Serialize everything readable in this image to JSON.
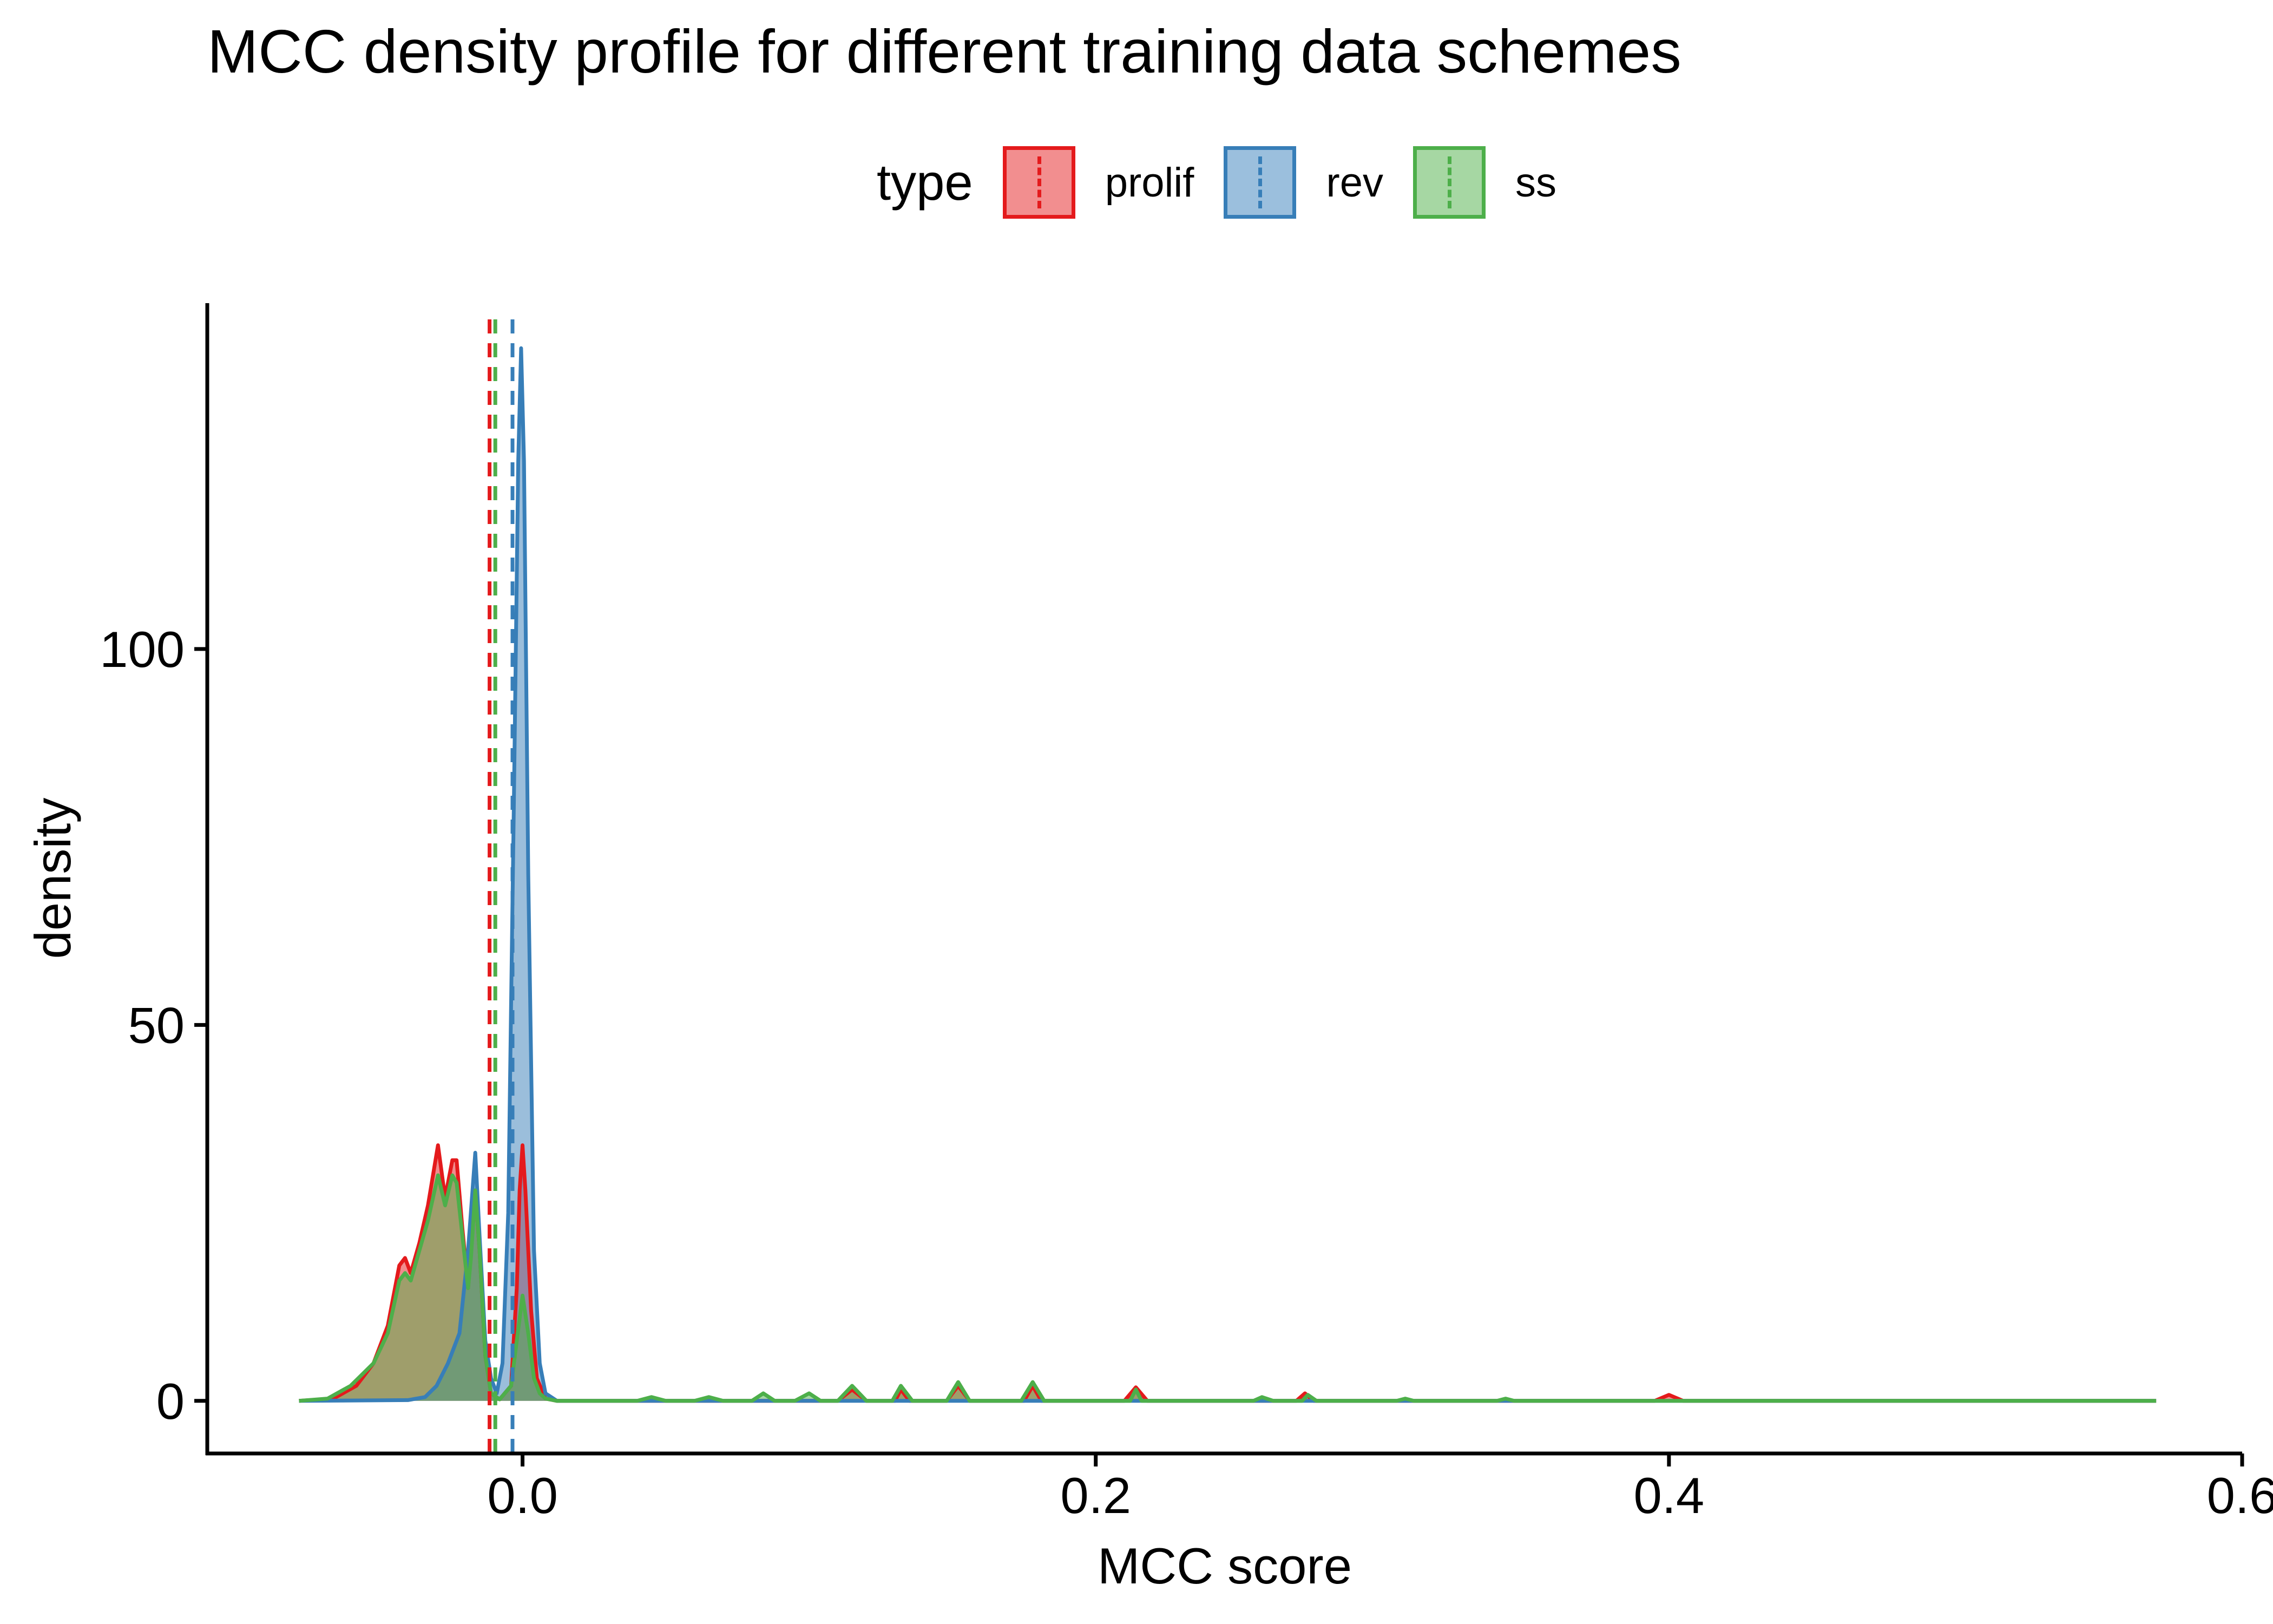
{
  "chart_data": {
    "type": "area",
    "title": "MCC density profile for different training data schemes",
    "xlabel": "MCC score",
    "ylabel": "density",
    "xlim": [
      -0.11,
      0.6
    ],
    "ylim": [
      -7,
      146
    ],
    "x_ticks": [
      "0.0",
      "0.2",
      "0.4",
      "0.6"
    ],
    "x_tick_values": [
      0.0,
      0.2,
      0.4,
      0.6
    ],
    "y_ticks": [
      "0",
      "50",
      "100"
    ],
    "y_tick_values": [
      0,
      50,
      100
    ],
    "grid": false,
    "legend": {
      "title": "type",
      "placement": "top"
    },
    "series": [
      {
        "name": "prolif",
        "color": "#E41A1C",
        "fill_color": "#F08A8C",
        "mean_line": -0.0115,
        "points": [
          [
            -0.078,
            0
          ],
          [
            -0.066,
            0.3
          ],
          [
            -0.058,
            2
          ],
          [
            -0.052,
            5
          ],
          [
            -0.047,
            10
          ],
          [
            -0.043,
            18
          ],
          [
            -0.041,
            19
          ],
          [
            -0.039,
            17
          ],
          [
            -0.036,
            21
          ],
          [
            -0.033,
            26
          ],
          [
            -0.0295,
            34
          ],
          [
            -0.027,
            27
          ],
          [
            -0.0245,
            32
          ],
          [
            -0.023,
            32
          ],
          [
            -0.021,
            23
          ],
          [
            -0.019,
            15
          ],
          [
            -0.018,
            20
          ],
          [
            -0.0165,
            28
          ],
          [
            -0.015,
            20
          ],
          [
            -0.013,
            6
          ],
          [
            -0.011,
            1
          ],
          [
            -0.008,
            0.2
          ],
          [
            -0.004,
            2
          ],
          [
            -0.002,
            15
          ],
          [
            -0.001,
            28
          ],
          [
            0.0,
            34
          ],
          [
            0.001,
            28
          ],
          [
            0.003,
            12
          ],
          [
            0.005,
            3
          ],
          [
            0.008,
            0.3
          ],
          [
            0.012,
            0
          ],
          [
            0.11,
            0
          ],
          [
            0.115,
            1.5
          ],
          [
            0.12,
            0
          ],
          [
            0.13,
            0
          ],
          [
            0.132,
            1.5
          ],
          [
            0.135,
            0
          ],
          [
            0.148,
            0
          ],
          [
            0.152,
            2
          ],
          [
            0.156,
            0
          ],
          [
            0.175,
            0
          ],
          [
            0.178,
            2
          ],
          [
            0.181,
            0
          ],
          [
            0.21,
            0
          ],
          [
            0.214,
            1.8
          ],
          [
            0.218,
            0
          ],
          [
            0.27,
            0
          ],
          [
            0.273,
            1
          ],
          [
            0.276,
            0
          ],
          [
            0.395,
            0
          ],
          [
            0.4,
            0.8
          ],
          [
            0.405,
            0
          ],
          [
            0.57,
            0
          ]
        ]
      },
      {
        "name": "rev",
        "color": "#377EB8",
        "fill_color": "#9BBFDD",
        "mean_line": -0.0035,
        "points": [
          [
            -0.078,
            0
          ],
          [
            -0.04,
            0.1
          ],
          [
            -0.034,
            0.5
          ],
          [
            -0.03,
            2
          ],
          [
            -0.026,
            5
          ],
          [
            -0.022,
            9
          ],
          [
            -0.019,
            20
          ],
          [
            -0.0165,
            33
          ],
          [
            -0.015,
            22
          ],
          [
            -0.013,
            8
          ],
          [
            -0.011,
            3
          ],
          [
            -0.009,
            1
          ],
          [
            -0.007,
            5
          ],
          [
            -0.005,
            25
          ],
          [
            -0.003,
            80
          ],
          [
            -0.0015,
            125
          ],
          [
            -0.0005,
            140
          ],
          [
            0.0005,
            125
          ],
          [
            0.002,
            70
          ],
          [
            0.004,
            20
          ],
          [
            0.006,
            5
          ],
          [
            0.008,
            1
          ],
          [
            0.012,
            0
          ],
          [
            0.57,
            0
          ]
        ]
      },
      {
        "name": "ss",
        "color": "#4DAF4A",
        "fill_color": "#A6D7A3",
        "mean_line": -0.0095,
        "points": [
          [
            -0.078,
            0
          ],
          [
            -0.068,
            0.3
          ],
          [
            -0.06,
            2
          ],
          [
            -0.052,
            5
          ],
          [
            -0.047,
            9
          ],
          [
            -0.043,
            16
          ],
          [
            -0.041,
            17
          ],
          [
            -0.039,
            16
          ],
          [
            -0.036,
            20
          ],
          [
            -0.033,
            24
          ],
          [
            -0.0295,
            30
          ],
          [
            -0.027,
            26
          ],
          [
            -0.0245,
            30
          ],
          [
            -0.023,
            29
          ],
          [
            -0.021,
            22
          ],
          [
            -0.019,
            15
          ],
          [
            -0.018,
            19
          ],
          [
            -0.0165,
            28
          ],
          [
            -0.015,
            20
          ],
          [
            -0.013,
            6
          ],
          [
            -0.011,
            1
          ],
          [
            -0.008,
            0.2
          ],
          [
            -0.004,
            2
          ],
          [
            -0.002,
            8
          ],
          [
            0.0,
            14
          ],
          [
            0.002,
            9
          ],
          [
            0.004,
            3
          ],
          [
            0.006,
            1
          ],
          [
            0.008,
            0.3
          ],
          [
            0.012,
            0
          ],
          [
            0.04,
            0
          ],
          [
            0.045,
            0.5
          ],
          [
            0.05,
            0
          ],
          [
            0.06,
            0
          ],
          [
            0.065,
            0.5
          ],
          [
            0.07,
            0
          ],
          [
            0.08,
            0
          ],
          [
            0.084,
            1
          ],
          [
            0.088,
            0
          ],
          [
            0.095,
            0
          ],
          [
            0.1,
            1
          ],
          [
            0.104,
            0
          ],
          [
            0.11,
            0
          ],
          [
            0.115,
            2
          ],
          [
            0.12,
            0
          ],
          [
            0.129,
            0
          ],
          [
            0.132,
            2
          ],
          [
            0.136,
            0
          ],
          [
            0.148,
            0
          ],
          [
            0.152,
            2.5
          ],
          [
            0.156,
            0
          ],
          [
            0.174,
            0
          ],
          [
            0.178,
            2.5
          ],
          [
            0.182,
            0
          ],
          [
            0.212,
            0
          ],
          [
            0.214,
            1.5
          ],
          [
            0.216,
            0
          ],
          [
            0.255,
            0
          ],
          [
            0.258,
            0.5
          ],
          [
            0.262,
            0
          ],
          [
            0.272,
            0
          ],
          [
            0.274,
            0.8
          ],
          [
            0.277,
            0
          ],
          [
            0.305,
            0
          ],
          [
            0.308,
            0.3
          ],
          [
            0.311,
            0
          ],
          [
            0.34,
            0
          ],
          [
            0.343,
            0.3
          ],
          [
            0.346,
            0
          ],
          [
            0.57,
            0
          ]
        ]
      }
    ]
  }
}
